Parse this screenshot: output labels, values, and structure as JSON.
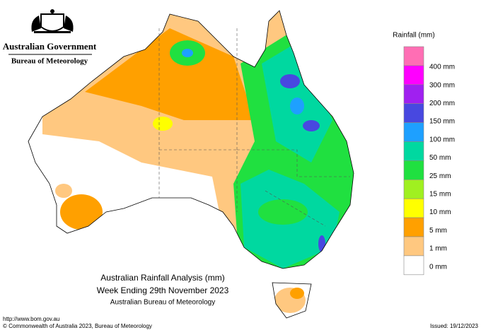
{
  "header": {
    "government": "Australian Government",
    "agency": "Bureau of Meteorology"
  },
  "legend": {
    "title": "Rainfall (mm)",
    "items": [
      {
        "label": null,
        "color": "#ff6eb4"
      },
      {
        "label": "400 mm",
        "color": "#ff00ff"
      },
      {
        "label": "300 mm",
        "color": "#a020f0"
      },
      {
        "label": "200 mm",
        "color": "#4848e0"
      },
      {
        "label": "150 mm",
        "color": "#1ea0ff"
      },
      {
        "label": "100 mm",
        "color": "#00d8a0"
      },
      {
        "label": "50 mm",
        "color": "#20e040"
      },
      {
        "label": "25 mm",
        "color": "#a0f020"
      },
      {
        "label": "15 mm",
        "color": "#ffff00"
      },
      {
        "label": "10 mm",
        "color": "#ffa000"
      },
      {
        "label": "5 mm",
        "color": "#ffc880"
      },
      {
        "label": "1 mm",
        "color": "#ffffff"
      }
    ],
    "last_label": "0 mm"
  },
  "caption": {
    "title": "Australian Rainfall Analysis (mm)",
    "subtitle": "Week Ending 29th November 2023",
    "source": "Australian Bureau of Meteorology"
  },
  "footer": {
    "url": "http://www.bom.gov.au",
    "copyright": "© Commonwealth of Australia 2023, Bureau of Meteorology",
    "issued": "Issued: 19/12/2023"
  }
}
